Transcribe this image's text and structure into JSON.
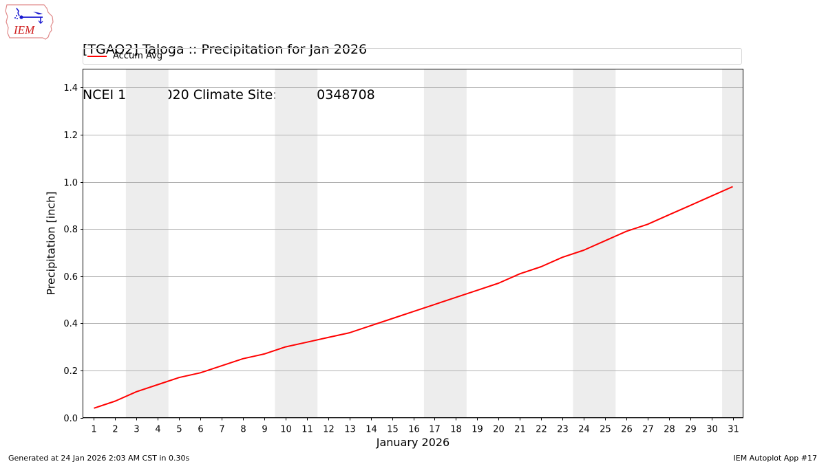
{
  "header": {
    "title_line1": "[TGAO2] Taloga :: Precipitation for Jan 2026",
    "title_line2": "NCEI 1991-2020 Climate Site: USC00348708",
    "logo_text": "IEM"
  },
  "legend": {
    "items": [
      {
        "label": "Accum Avg",
        "color": "#ff0000"
      }
    ]
  },
  "footer": {
    "generated": "Generated at 24 Jan 2026 2:03 AM CST in 0.30s",
    "app": "IEM Autoplot App #17"
  },
  "colors": {
    "line": "#ff0000",
    "weekend_shade": "#ededed",
    "grid": "#b0b0b0"
  },
  "chart_data": {
    "type": "line",
    "title": "[TGAO2] Taloga :: Precipitation for Jan 2026",
    "subtitle": "NCEI 1991-2020 Climate Site: USC00348708",
    "xlabel": "January 2026",
    "ylabel": "Precipitation [inch]",
    "x": [
      1,
      2,
      3,
      4,
      5,
      6,
      7,
      8,
      9,
      10,
      11,
      12,
      13,
      14,
      15,
      16,
      17,
      18,
      19,
      20,
      21,
      22,
      23,
      24,
      25,
      26,
      27,
      28,
      29,
      30,
      31
    ],
    "series": [
      {
        "name": "Accum Avg",
        "color": "#ff0000",
        "values": [
          0.04,
          0.07,
          0.11,
          0.14,
          0.17,
          0.19,
          0.22,
          0.25,
          0.27,
          0.3,
          0.32,
          0.34,
          0.36,
          0.39,
          0.42,
          0.45,
          0.48,
          0.51,
          0.54,
          0.57,
          0.61,
          0.64,
          0.68,
          0.71,
          0.75,
          0.79,
          0.82,
          0.86,
          0.9,
          0.94,
          0.98
        ]
      }
    ],
    "ylim": [
      0,
      1.48
    ],
    "xlim": [
      0.5,
      31.5
    ],
    "yticks": [
      "0.0",
      "0.2",
      "0.4",
      "0.6",
      "0.8",
      "1.0",
      "1.2",
      "1.4"
    ],
    "xticks": [
      "1",
      "2",
      "3",
      "4",
      "5",
      "6",
      "7",
      "8",
      "9",
      "10",
      "11",
      "12",
      "13",
      "14",
      "15",
      "16",
      "17",
      "18",
      "19",
      "20",
      "21",
      "22",
      "23",
      "24",
      "25",
      "26",
      "27",
      "28",
      "29",
      "30",
      "31"
    ],
    "grid": "y-major",
    "shaded_weekends": [
      [
        3,
        4
      ],
      [
        10,
        11
      ],
      [
        17,
        18
      ],
      [
        24,
        25
      ],
      [
        31,
        31
      ]
    ],
    "legend_position": "top"
  }
}
